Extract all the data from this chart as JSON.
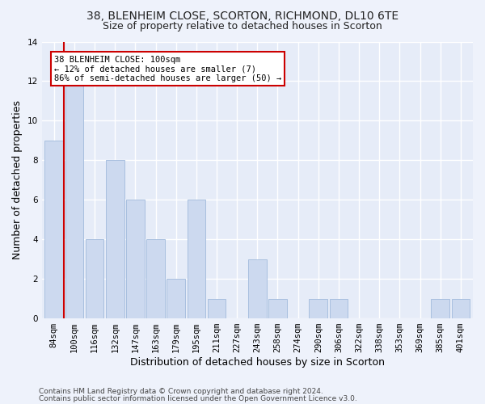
{
  "title_line1": "38, BLENHEIM CLOSE, SCORTON, RICHMOND, DL10 6TE",
  "title_line2": "Size of property relative to detached houses in Scorton",
  "xlabel": "Distribution of detached houses by size in Scorton",
  "ylabel": "Number of detached properties",
  "categories": [
    "84sqm",
    "100sqm",
    "116sqm",
    "132sqm",
    "147sqm",
    "163sqm",
    "179sqm",
    "195sqm",
    "211sqm",
    "227sqm",
    "243sqm",
    "258sqm",
    "274sqm",
    "290sqm",
    "306sqm",
    "322sqm",
    "338sqm",
    "353sqm",
    "369sqm",
    "385sqm",
    "401sqm"
  ],
  "values": [
    9,
    12,
    4,
    8,
    6,
    4,
    2,
    6,
    1,
    0,
    3,
    1,
    0,
    1,
    1,
    0,
    0,
    0,
    0,
    1,
    1
  ],
  "bar_color": "#ccd9ef",
  "bar_edgecolor": "#a8bfdf",
  "marker_index": 1,
  "marker_color": "#cc0000",
  "ylim": [
    0,
    14
  ],
  "yticks": [
    0,
    2,
    4,
    6,
    8,
    10,
    12,
    14
  ],
  "annotation_text": "38 BLENHEIM CLOSE: 100sqm\n← 12% of detached houses are smaller (7)\n86% of semi-detached houses are larger (50) →",
  "annotation_box_facecolor": "#ffffff",
  "annotation_box_edgecolor": "#cc0000",
  "footer_line1": "Contains HM Land Registry data © Crown copyright and database right 2024.",
  "footer_line2": "Contains public sector information licensed under the Open Government Licence v3.0.",
  "background_color": "#eef2fb",
  "plot_background": "#e6ecf8",
  "grid_color": "#ffffff",
  "title_fontsize": 10,
  "subtitle_fontsize": 9,
  "tick_fontsize": 7.5,
  "ylabel_fontsize": 9,
  "xlabel_fontsize": 9,
  "footer_fontsize": 6.5
}
